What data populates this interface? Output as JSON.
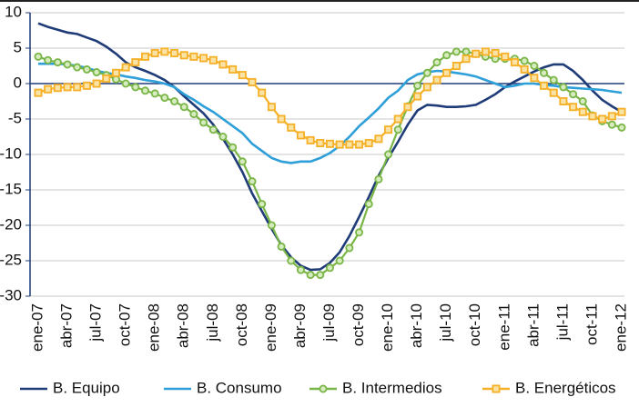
{
  "chart_data": {
    "type": "line",
    "categories": [
      "ene-07",
      null,
      null,
      "abr-07",
      null,
      null,
      "jul-07",
      null,
      null,
      "oct-07",
      null,
      null,
      "ene-08",
      null,
      null,
      "abr-08",
      null,
      null,
      "jul-08",
      null,
      null,
      "oct-08",
      null,
      null,
      "ene-09",
      null,
      null,
      "abr-09",
      null,
      null,
      "jul-09",
      null,
      null,
      "oct-09",
      null,
      null,
      "ene-10",
      null,
      null,
      "abr-10",
      null,
      null,
      "jul-10",
      null,
      null,
      "oct-10",
      null,
      null,
      "ene-11",
      null,
      null,
      "abr-11",
      null,
      null,
      "jul-11",
      null,
      null,
      "oct-11",
      null,
      null,
      "ene-12"
    ],
    "ylim": [
      -30,
      10
    ],
    "yticks": [
      10,
      5,
      0,
      -5,
      -10,
      -15,
      -20,
      -25,
      -30
    ],
    "grid": true,
    "legend": "bottom",
    "series": [
      {
        "name": "B. Equipo",
        "color": "#1f3c78",
        "marker": "none",
        "values": [
          8.5,
          8,
          7.6,
          7.2,
          7,
          6.5,
          6,
          5.2,
          4.2,
          3,
          2.3,
          1.8,
          1.2,
          0.5,
          -0.5,
          -1.8,
          -3,
          -4.2,
          -5.8,
          -7.8,
          -10,
          -12.5,
          -15.5,
          -18,
          -20.5,
          -22.8,
          -24.5,
          -25.7,
          -26.3,
          -26.2,
          -25.3,
          -23.8,
          -21.5,
          -18.8,
          -16,
          -13,
          -10.5,
          -8.2,
          -5.8,
          -3.8,
          -3,
          -3.1,
          -3.3,
          -3.3,
          -3.2,
          -3,
          -2.3,
          -1.5,
          -0.5,
          0.3,
          1,
          1.7,
          2.3,
          2.7,
          2.7,
          1.8,
          0.5,
          -1,
          -2.3,
          -3.2,
          -4
        ]
      },
      {
        "name": "B. Consumo",
        "color": "#2e9fd8",
        "marker": "none",
        "values": [
          2.8,
          2.8,
          2.8,
          2.7,
          2.5,
          2.2,
          1.8,
          1.5,
          1.3,
          1,
          0.8,
          0.5,
          0.3,
          0,
          -0.5,
          -1.5,
          -2.3,
          -3.2,
          -4,
          -5,
          -6,
          -7,
          -8.5,
          -9.5,
          -10.5,
          -11,
          -11.2,
          -11,
          -11,
          -10.5,
          -9.8,
          -8.8,
          -7.5,
          -6,
          -4.8,
          -3.5,
          -2,
          -1,
          0.5,
          1.3,
          1.6,
          1.8,
          1.7,
          1.5,
          1.3,
          1,
          0.5,
          0,
          -0.5,
          -0.3,
          0,
          0,
          -0.2,
          -0.3,
          -0.5,
          -0.6,
          -0.7,
          -0.8,
          -0.9,
          -1.1,
          -1.3
        ]
      },
      {
        "name": "B. Intermedios",
        "color": "#79b547",
        "marker": "circle",
        "values": [
          3.8,
          3.3,
          3,
          2.7,
          2.3,
          2,
          1.6,
          1.2,
          0.6,
          0,
          -0.5,
          -1,
          -1.4,
          -2,
          -2.5,
          -3.3,
          -4.3,
          -5.5,
          -6.5,
          -7.5,
          -9,
          -11,
          -13.8,
          -17,
          -20,
          -23,
          -25,
          -26.3,
          -27,
          -27,
          -26,
          -25,
          -23.2,
          -21,
          -17,
          -13.5,
          -10,
          -6.5,
          -3.2,
          -0.3,
          1.5,
          3,
          4,
          4.5,
          4.5,
          4.2,
          3.8,
          3.5,
          3.5,
          3.5,
          3.2,
          2.5,
          1.5,
          0.5,
          -0.5,
          -1.5,
          -2.5,
          -4.5,
          -5.3,
          -5.8,
          -6.2
        ]
      },
      {
        "name": "B. Energéticos",
        "color": "#f5b027",
        "marker": "square",
        "values": [
          -1.3,
          -0.8,
          -0.6,
          -0.5,
          -0.5,
          -0.3,
          0,
          0.7,
          1.5,
          2.3,
          3,
          3.8,
          4.3,
          4.5,
          4.3,
          4,
          3.8,
          3.6,
          3.3,
          2.7,
          2,
          1.2,
          0.2,
          -1.3,
          -3.3,
          -5,
          -6.2,
          -7.3,
          -8,
          -8.4,
          -8.5,
          -8.6,
          -8.6,
          -8.6,
          -8.4,
          -7.8,
          -6.5,
          -5,
          -3.3,
          -1.8,
          -0.5,
          0.5,
          1.5,
          2.5,
          3.5,
          4.2,
          4.5,
          4.3,
          3.8,
          3,
          2,
          0.8,
          -0.3,
          -1.3,
          -2.5,
          -3.3,
          -4,
          -4.6,
          -5,
          -4.6,
          -4
        ]
      }
    ]
  }
}
